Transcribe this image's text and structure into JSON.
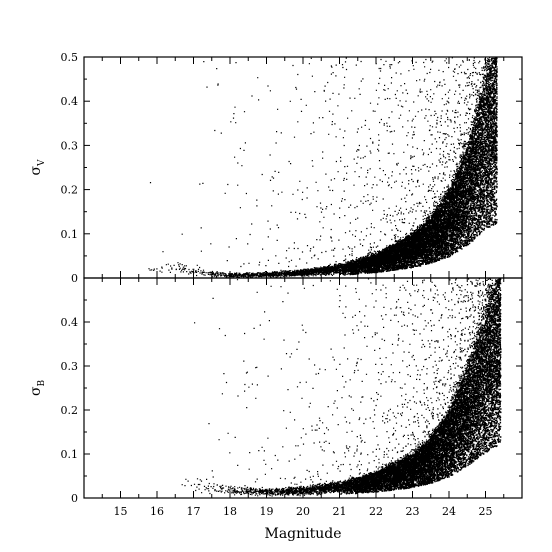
{
  "chart_data": [
    {
      "type": "scatter",
      "panel": "top",
      "ylabel_symbol": "σ",
      "ylabel_subscript": "V",
      "xlim": [
        14.0,
        26.0
      ],
      "ylim": [
        0.0,
        0.5
      ],
      "yticks": [
        "0",
        "0.1",
        "0.2",
        "0.3",
        "0.4",
        "0.5"
      ],
      "x_tick_labels_shown": false,
      "grid": false,
      "legend": "none",
      "marker_color": "#000000",
      "envelope": [
        {
          "x": 15.0,
          "y": 0.03
        },
        {
          "x": 16.0,
          "y": 0.04
        },
        {
          "x": 16.5,
          "y": 0.035
        },
        {
          "x": 17.0,
          "y": 0.02
        },
        {
          "x": 18.0,
          "y": 0.01
        },
        {
          "x": 19.0,
          "y": 0.012
        },
        {
          "x": 20.0,
          "y": 0.018
        },
        {
          "x": 21.0,
          "y": 0.03
        },
        {
          "x": 22.0,
          "y": 0.055
        },
        {
          "x": 23.0,
          "y": 0.1
        },
        {
          "x": 23.5,
          "y": 0.14
        },
        {
          "x": 24.0,
          "y": 0.2
        },
        {
          "x": 24.5,
          "y": 0.3
        },
        {
          "x": 25.0,
          "y": 0.45
        },
        {
          "x": 25.3,
          "y": 0.5
        }
      ]
    },
    {
      "type": "scatter",
      "panel": "bottom",
      "ylabel_symbol": "σ",
      "ylabel_subscript": "B",
      "xlabel": "Magnitude",
      "xlim": [
        14.0,
        26.0
      ],
      "ylim": [
        0.0,
        0.5
      ],
      "xticks": [
        "15",
        "16",
        "17",
        "18",
        "19",
        "20",
        "21",
        "22",
        "23",
        "24",
        "25"
      ],
      "yticks": [
        "0",
        "0.1",
        "0.2",
        "0.3",
        "0.4"
      ],
      "grid": false,
      "legend": "none",
      "marker_color": "#000000",
      "envelope": [
        {
          "x": 16.0,
          "y": 0.08
        },
        {
          "x": 17.0,
          "y": 0.05
        },
        {
          "x": 17.5,
          "y": 0.035
        },
        {
          "x": 18.0,
          "y": 0.025
        },
        {
          "x": 19.0,
          "y": 0.02
        },
        {
          "x": 20.0,
          "y": 0.025
        },
        {
          "x": 21.0,
          "y": 0.035
        },
        {
          "x": 22.0,
          "y": 0.06
        },
        {
          "x": 23.0,
          "y": 0.1
        },
        {
          "x": 23.5,
          "y": 0.14
        },
        {
          "x": 24.0,
          "y": 0.2
        },
        {
          "x": 24.5,
          "y": 0.3
        },
        {
          "x": 25.0,
          "y": 0.42
        },
        {
          "x": 25.4,
          "y": 0.5
        }
      ]
    }
  ]
}
